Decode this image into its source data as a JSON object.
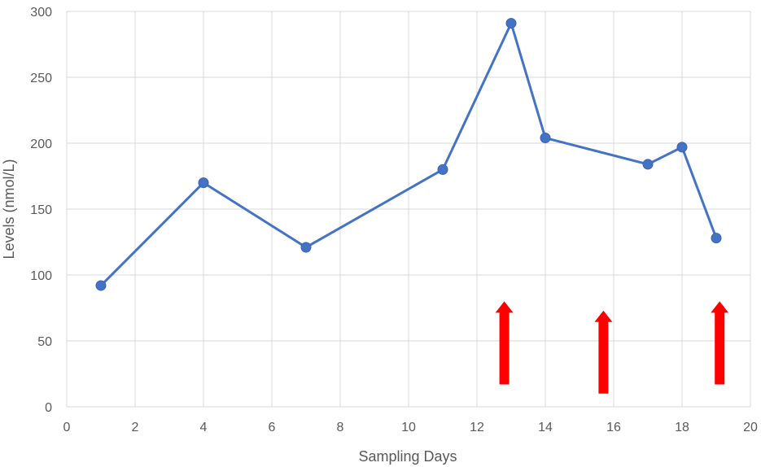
{
  "chart_data": {
    "type": "line",
    "title": "",
    "xlabel": "Sampling Days",
    "ylabel": "Levels (nmol/L)",
    "xlim": [
      0,
      20
    ],
    "ylim": [
      0,
      300
    ],
    "xticks": [
      0,
      2,
      4,
      6,
      8,
      10,
      12,
      14,
      16,
      18,
      20
    ],
    "yticks": [
      0,
      50,
      100,
      150,
      200,
      250,
      300
    ],
    "grid": true,
    "series": [
      {
        "color": "#4472c4",
        "points": [
          {
            "x": 1,
            "y": 92
          },
          {
            "x": 4,
            "y": 170
          },
          {
            "x": 7,
            "y": 121
          },
          {
            "x": 11,
            "y": 180
          },
          {
            "x": 13,
            "y": 291
          },
          {
            "x": 14,
            "y": 204
          },
          {
            "x": 17,
            "y": 184
          },
          {
            "x": 18,
            "y": 197
          },
          {
            "x": 19,
            "y": 128
          }
        ]
      }
    ],
    "annotations": {
      "type": "up-arrow",
      "color": "#ff0000",
      "arrows": [
        {
          "x": 12.8,
          "y_from": 17,
          "y_to": 80
        },
        {
          "x": 15.7,
          "y_from": 10,
          "y_to": 73
        },
        {
          "x": 19.1,
          "y_from": 17,
          "y_to": 80
        }
      ]
    }
  }
}
